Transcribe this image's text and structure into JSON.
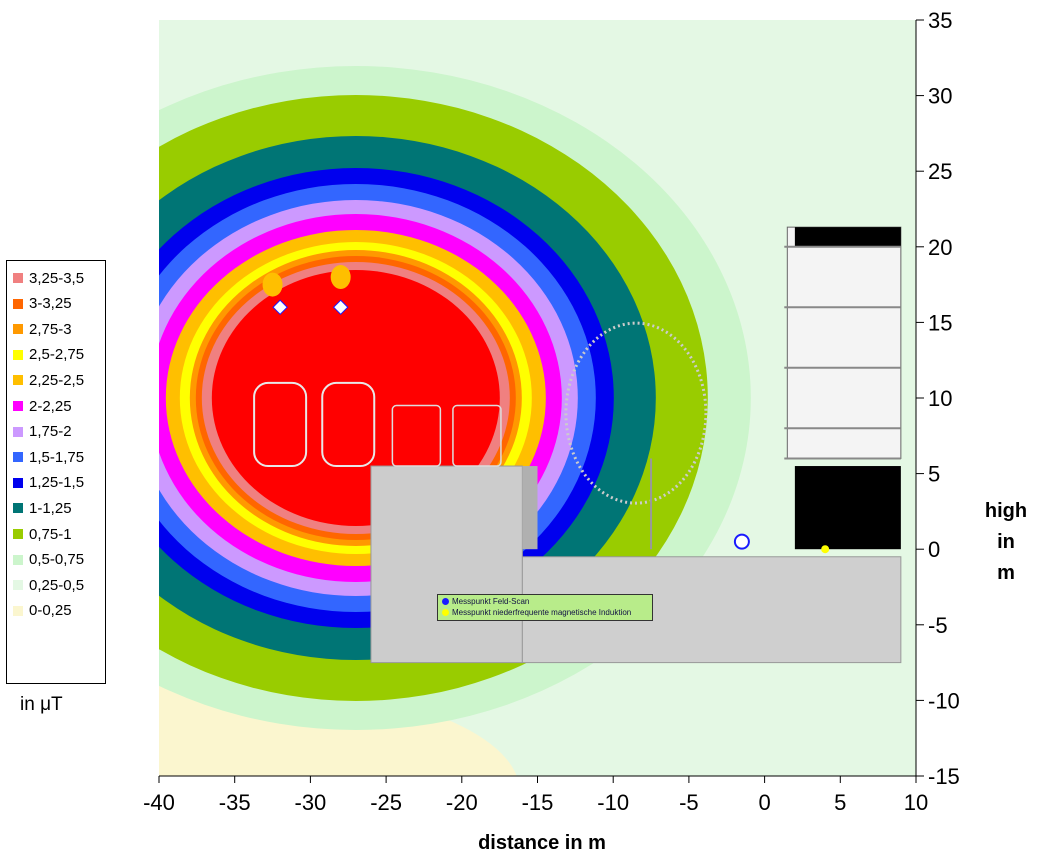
{
  "chart_data": {
    "type": "heatmap",
    "title": "",
    "xlabel": "distance in m",
    "ylabel_lines": [
      "high",
      "in",
      "m"
    ],
    "xlim": [
      -40,
      10
    ],
    "ylim": [
      -15,
      35
    ],
    "xticks": [
      "-40",
      "-35",
      "-30",
      "-25",
      "-20",
      "-15",
      "-10",
      "-5",
      "0",
      "5",
      "10"
    ],
    "yticks": [
      "35",
      "30",
      "25",
      "20",
      "15",
      "10",
      "5",
      "0",
      "-5",
      "-10",
      "-15"
    ],
    "field_unit": "in μT",
    "legend": [
      {
        "label": "3,25-3,5",
        "color": "#f08080"
      },
      {
        "label": "3-3,25",
        "color": "#ff6600"
      },
      {
        "label": "2,75-3",
        "color": "#ff9900"
      },
      {
        "label": "2,5-2,75",
        "color": "#ffff00"
      },
      {
        "label": "2,25-2,5",
        "color": "#ffbf00"
      },
      {
        "label": "2-2,25",
        "color": "#ff00ff"
      },
      {
        "label": "1,75-2",
        "color": "#cc99ff"
      },
      {
        "label": "1,5-1,75",
        "color": "#3366ff"
      },
      {
        "label": "1,25-1,5",
        "color": "#0000ee"
      },
      {
        "label": "1-1,25",
        "color": "#007575"
      },
      {
        "label": "0,75-1",
        "color": "#99cc00"
      },
      {
        "label": "0,5-0,75",
        "color": "#ccf5cc"
      },
      {
        "label": "0,25-0,5",
        "color": "#e4f8e4"
      },
      {
        "label": "0-0,25",
        "color": "#fbf6cf"
      }
    ],
    "core_color": "#ff0000",
    "annotations": [
      {
        "label": "Messpunkt Feld-Scan",
        "color": "#1a1aff"
      },
      {
        "label": "Messpunkt niederfrequente magnetische Induktion",
        "color": "#ffff00"
      }
    ],
    "grid": false
  }
}
